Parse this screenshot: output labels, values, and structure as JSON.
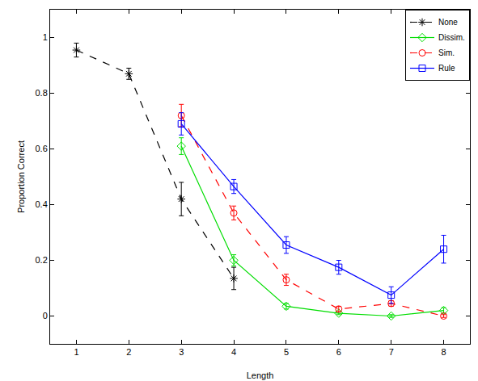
{
  "chart_data": {
    "type": "line",
    "x_label": "Length",
    "y_label": "Proportion Correct",
    "x": [
      1,
      2,
      3,
      4,
      5,
      6,
      7,
      8
    ],
    "xlim": [
      0.5,
      8.5
    ],
    "xticks": [
      1,
      2,
      3,
      4,
      5,
      6,
      7,
      8
    ],
    "ylim": [
      -0.1,
      1.1
    ],
    "yticks": [
      0,
      0.2,
      0.4,
      0.6,
      0.8,
      1
    ],
    "grid": false,
    "legend": "top-right",
    "series": [
      {
        "name": "None",
        "color": "#000000",
        "marker": "asterisk",
        "line_style": "dashed",
        "values": [
          0.955,
          0.87,
          0.42,
          0.135,
          null,
          null,
          null,
          null
        ],
        "errors": [
          0.025,
          0.02,
          0.06,
          0.04,
          null,
          null,
          null,
          null
        ]
      },
      {
        "name": "Dissim.",
        "color": "#00dd00",
        "marker": "diamond",
        "line_style": "solid",
        "values": [
          null,
          null,
          0.61,
          0.2,
          0.035,
          0.01,
          0.0,
          0.02
        ],
        "errors": [
          null,
          null,
          0.03,
          0.02,
          0.01,
          0.005,
          0.005,
          0.01
        ]
      },
      {
        "name": "Sim.",
        "color": "#ff0000",
        "marker": "circle",
        "line_style": "dashed",
        "values": [
          null,
          null,
          0.72,
          0.37,
          0.13,
          0.025,
          0.045,
          0.0
        ],
        "errors": [
          null,
          null,
          0.04,
          0.025,
          0.02,
          0.01,
          0.01,
          0.005
        ]
      },
      {
        "name": "Rule",
        "color": "#0000ff",
        "marker": "square",
        "line_style": "solid",
        "values": [
          null,
          null,
          0.69,
          0.465,
          0.255,
          0.175,
          0.075,
          0.24
        ],
        "errors": [
          null,
          null,
          0.04,
          0.025,
          0.03,
          0.025,
          0.03,
          0.05
        ]
      }
    ]
  }
}
